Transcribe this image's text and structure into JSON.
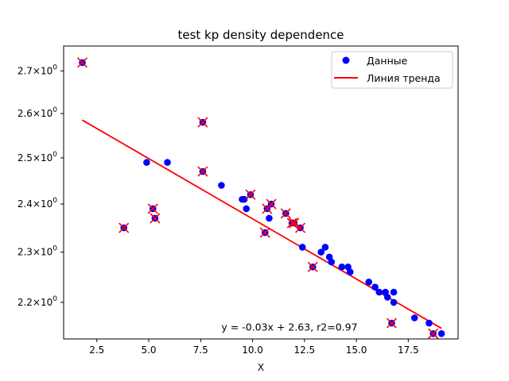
{
  "chart_data": {
    "type": "scatter",
    "title": "test kp density dependence",
    "xlabel": "X",
    "ylabel": "",
    "xlim": [
      0.9,
      19.9
    ],
    "ylim": [
      2.13,
      2.76
    ],
    "yscale": "log",
    "grid": false,
    "legend_position": "top-right",
    "x_ticks": [
      2.5,
      5.0,
      7.5,
      10.0,
      12.5,
      15.0,
      17.5
    ],
    "x_tick_labels": [
      "2.5",
      "5.0",
      "7.5",
      "10.0",
      "12.5",
      "15.0",
      "17.5"
    ],
    "y_ticks": [
      2.2,
      2.3,
      2.4,
      2.5,
      2.6,
      2.7
    ],
    "y_tick_labels": [
      "2.2",
      "2.3",
      "2.4",
      "2.5",
      "2.6",
      "2.7"
    ],
    "y_tick_label_suffix": "×10",
    "y_tick_label_exponent": "0",
    "series": [
      {
        "name": "Данные",
        "color": "#0000ff",
        "marker": "circle",
        "points": [
          {
            "x": 1.8,
            "y": 2.72
          },
          {
            "x": 3.8,
            "y": 2.35
          },
          {
            "x": 4.9,
            "y": 2.49
          },
          {
            "x": 5.2,
            "y": 2.39
          },
          {
            "x": 5.3,
            "y": 2.37
          },
          {
            "x": 5.9,
            "y": 2.49
          },
          {
            "x": 7.6,
            "y": 2.58
          },
          {
            "x": 7.6,
            "y": 2.47
          },
          {
            "x": 8.5,
            "y": 2.44
          },
          {
            "x": 9.5,
            "y": 2.41
          },
          {
            "x": 9.6,
            "y": 2.41
          },
          {
            "x": 9.7,
            "y": 2.39
          },
          {
            "x": 9.9,
            "y": 2.42
          },
          {
            "x": 10.6,
            "y": 2.34
          },
          {
            "x": 10.7,
            "y": 2.39
          },
          {
            "x": 10.8,
            "y": 2.37
          },
          {
            "x": 10.9,
            "y": 2.4
          },
          {
            "x": 11.6,
            "y": 2.38
          },
          {
            "x": 11.9,
            "y": 2.36
          },
          {
            "x": 12.0,
            "y": 2.36
          },
          {
            "x": 12.3,
            "y": 2.35
          },
          {
            "x": 12.4,
            "y": 2.31
          },
          {
            "x": 12.9,
            "y": 2.27
          },
          {
            "x": 13.3,
            "y": 2.3
          },
          {
            "x": 13.5,
            "y": 2.31
          },
          {
            "x": 13.7,
            "y": 2.29
          },
          {
            "x": 13.8,
            "y": 2.28
          },
          {
            "x": 14.3,
            "y": 2.27
          },
          {
            "x": 14.6,
            "y": 2.27
          },
          {
            "x": 14.7,
            "y": 2.26
          },
          {
            "x": 15.6,
            "y": 2.24
          },
          {
            "x": 15.9,
            "y": 2.23
          },
          {
            "x": 16.1,
            "y": 2.22
          },
          {
            "x": 16.4,
            "y": 2.22
          },
          {
            "x": 16.5,
            "y": 2.21
          },
          {
            "x": 16.7,
            "y": 2.16
          },
          {
            "x": 16.8,
            "y": 2.22
          },
          {
            "x": 16.8,
            "y": 2.2
          },
          {
            "x": 17.8,
            "y": 2.17
          },
          {
            "x": 18.5,
            "y": 2.16
          },
          {
            "x": 18.7,
            "y": 2.14
          },
          {
            "x": 19.1,
            "y": 2.14
          }
        ]
      },
      {
        "name": "",
        "color": "#ff0000",
        "marker": "x-outliers",
        "points": [
          {
            "x": 1.8,
            "y": 2.72
          },
          {
            "x": 3.8,
            "y": 2.35
          },
          {
            "x": 5.2,
            "y": 2.39
          },
          {
            "x": 5.3,
            "y": 2.37
          },
          {
            "x": 7.6,
            "y": 2.58
          },
          {
            "x": 7.6,
            "y": 2.47
          },
          {
            "x": 9.9,
            "y": 2.42
          },
          {
            "x": 10.6,
            "y": 2.34
          },
          {
            "x": 10.7,
            "y": 2.39
          },
          {
            "x": 10.9,
            "y": 2.4
          },
          {
            "x": 11.6,
            "y": 2.38
          },
          {
            "x": 11.9,
            "y": 2.36
          },
          {
            "x": 12.0,
            "y": 2.36
          },
          {
            "x": 12.3,
            "y": 2.35
          },
          {
            "x": 12.9,
            "y": 2.27
          },
          {
            "x": 16.7,
            "y": 2.16
          },
          {
            "x": 18.7,
            "y": 2.14
          }
        ]
      },
      {
        "name": "Линия тренда",
        "color": "#ff0000",
        "type": "line",
        "points": [
          {
            "x": 1.8,
            "y": 2.585
          },
          {
            "x": 19.1,
            "y": 2.15
          }
        ]
      }
    ],
    "annotations": [
      {
        "text": "y = -0.03x + 2.63, r2=0.97",
        "x": 8.5,
        "y": 2.146
      }
    ]
  }
}
